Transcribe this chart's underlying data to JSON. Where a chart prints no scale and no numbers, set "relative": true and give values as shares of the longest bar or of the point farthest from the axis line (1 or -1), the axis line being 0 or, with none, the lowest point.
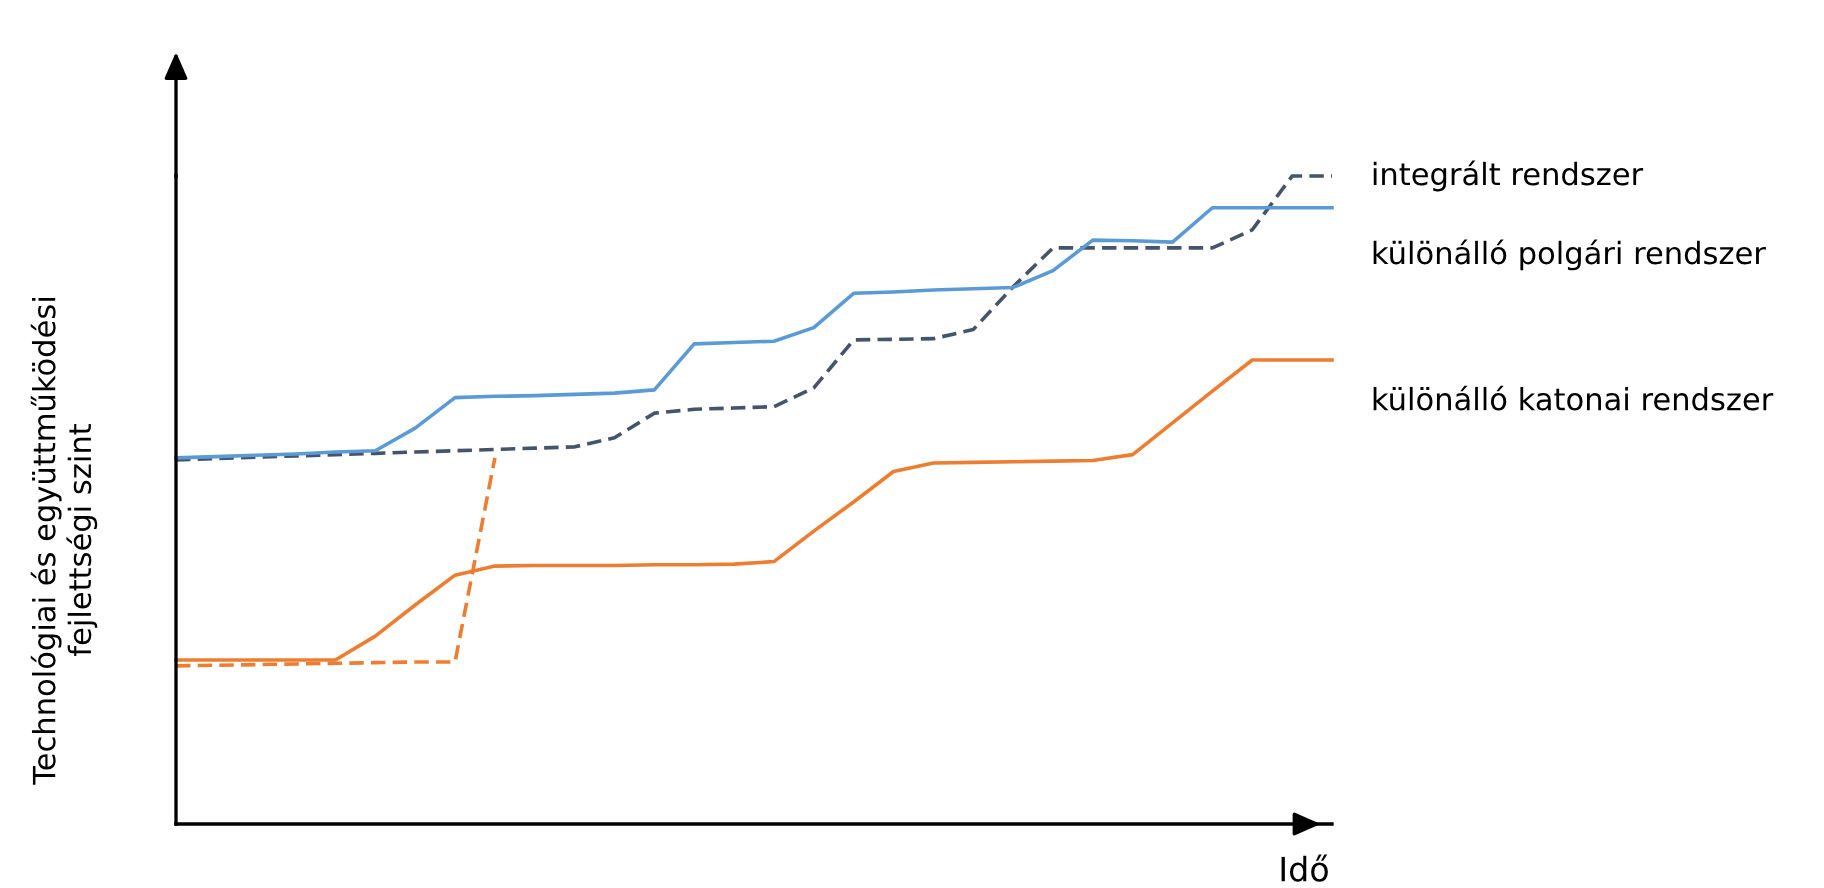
{
  "chart_data": {
    "type": "line",
    "relative": true,
    "legend": false,
    "xlabel": "Idő",
    "ylabel": "Technológiai és együttműködési\nfejlettségi szint",
    "categories": [
      null,
      null,
      null,
      null,
      null,
      null,
      null,
      null,
      null,
      null,
      null,
      null,
      null,
      null,
      null,
      null,
      null,
      null,
      null,
      null,
      null,
      null,
      null,
      null,
      null,
      null,
      null,
      null,
      null,
      null
    ],
    "series": [
      {
        "name": "integrált rendszer",
        "color": "#44546a",
        "line_style": "dashed",
        "values": [
          0.562,
          0.564,
          0.566,
          0.568,
          0.57,
          0.572,
          0.574,
          0.576,
          0.578,
          0.58,
          0.582,
          0.596,
          0.634,
          0.64,
          0.642,
          0.644,
          0.673,
          0.747,
          0.748,
          0.749,
          0.763,
          0.829,
          0.889,
          0.889,
          0.889,
          0.889,
          0.889,
          0.917,
          1,
          1
        ]
      },
      {
        "name": "különálló polgári rendszer",
        "color": "#5b9bd5",
        "line_style": "solid",
        "values": [
          0.565,
          0.567,
          0.569,
          0.571,
          0.574,
          0.576,
          0.611,
          0.658,
          0.66,
          0.661,
          0.663,
          0.665,
          0.67,
          0.741,
          0.743,
          0.745,
          0.766,
          0.819,
          0.821,
          0.824,
          0.826,
          0.828,
          0.854,
          0.901,
          0.9,
          0.898,
          0.951,
          0.951,
          0.951,
          0.951
        ]
      },
      {
        "name": "különálló katonai rendszer",
        "color": "#ed7d31",
        "line_style": "solid",
        "values": [
          0.253,
          0.253,
          0.253,
          0.253,
          0.253,
          0.29,
          0.338,
          0.384,
          0.398,
          0.399,
          0.399,
          0.399,
          0.4,
          0.4,
          0.401,
          0.405,
          0.452,
          0.497,
          0.544,
          0.557,
          0.558,
          0.559,
          0.56,
          0.561,
          0.57,
          0.619,
          0.668,
          0.716,
          0.716,
          0.716
        ]
      },
      {
        "color": "#ed7d31",
        "line_style": "dashed",
        "values": [
          0.244,
          0.245,
          0.246,
          0.247,
          0.248,
          0.249,
          0.25,
          0.25,
          0.565,
          null,
          null,
          null,
          null,
          null,
          null,
          null,
          null,
          null,
          null,
          null,
          null,
          null,
          null,
          null,
          null,
          null,
          null,
          null,
          null,
          null
        ]
      }
    ]
  }
}
